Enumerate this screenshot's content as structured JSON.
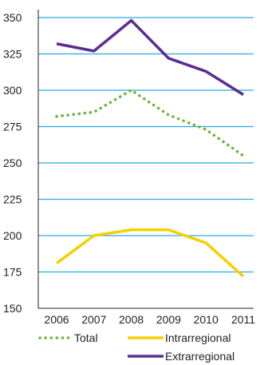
{
  "chart_data": {
    "type": "line",
    "title": "",
    "xlabel": "",
    "ylabel": "",
    "x": [
      "2006",
      "2007",
      "2008",
      "2009",
      "2010",
      "2011"
    ],
    "ylim": [
      150,
      350
    ],
    "yticks": [
      "150",
      "175",
      "200",
      "225",
      "250",
      "275",
      "300",
      "325",
      "350"
    ],
    "grid": "horizontal",
    "legend_position": "bottom",
    "series": [
      {
        "name": "Total",
        "color": "#6ab83c",
        "style": "dotted",
        "values": [
          282,
          285,
          300,
          283,
          273,
          255
        ]
      },
      {
        "name": "Intrarregional",
        "color": "#f5d000",
        "style": "solid",
        "values": [
          181,
          200,
          204,
          204,
          195,
          172
        ]
      },
      {
        "name": "Extrarregional",
        "color": "#5c2d91",
        "style": "solid",
        "values": [
          332,
          327,
          348,
          322,
          313,
          297
        ]
      }
    ],
    "colors": {
      "grid": "#29abe2",
      "axis": "#231f20"
    }
  }
}
